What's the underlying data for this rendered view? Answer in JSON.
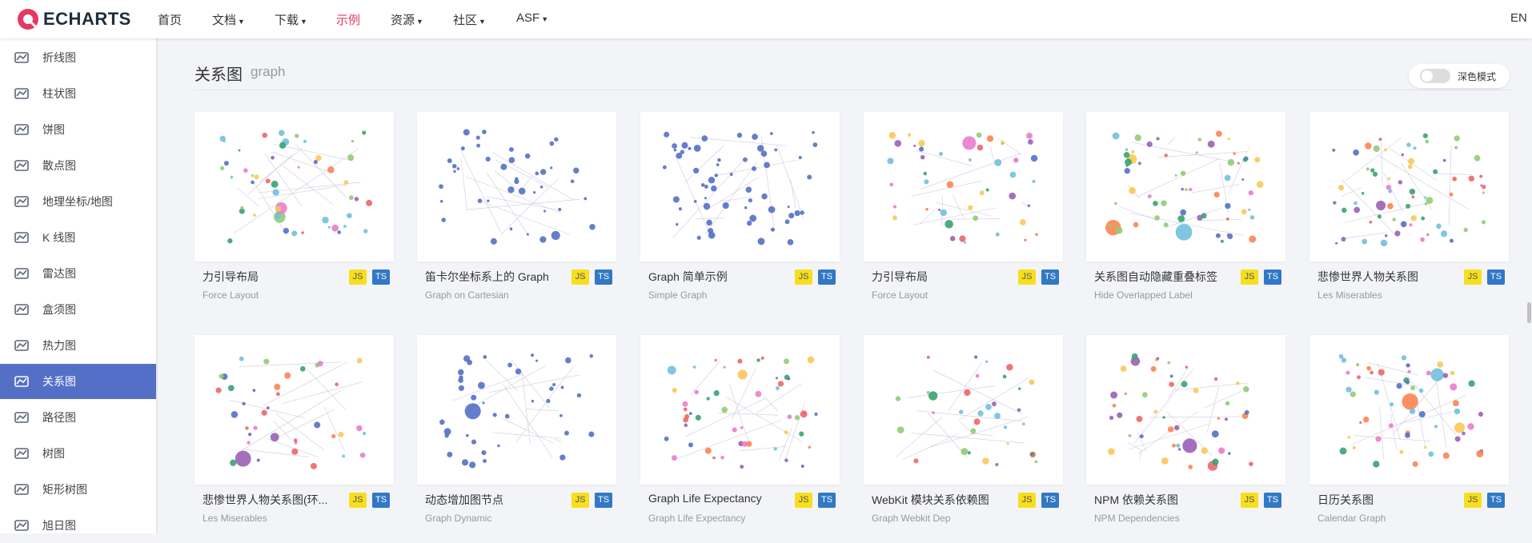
{
  "header": {
    "logo": "ECHARTS",
    "nav": [
      {
        "label": "首页",
        "caret": false
      },
      {
        "label": "文档",
        "caret": true
      },
      {
        "label": "下载",
        "caret": true
      },
      {
        "label": "示例",
        "caret": false,
        "active": true
      },
      {
        "label": "资源",
        "caret": true
      },
      {
        "label": "社区",
        "caret": true
      },
      {
        "label": "ASF",
        "caret": true
      }
    ],
    "lang": "EN"
  },
  "sidebar": {
    "items": [
      "折线图",
      "柱状图",
      "饼图",
      "散点图",
      "地理坐标/地图",
      "K 线图",
      "雷达图",
      "盒须图",
      "热力图",
      "关系图",
      "路径图",
      "树图",
      "矩形树图",
      "旭日图"
    ],
    "active": 9
  },
  "section": {
    "title": "关系图",
    "subtitle": "graph",
    "dark_mode": "深色模式"
  },
  "cards": [
    {
      "title": "力引导布局",
      "subtitle": "Force Layout",
      "badges": [
        "JS",
        "TS"
      ]
    },
    {
      "title": "笛卡尔坐标系上的 Graph",
      "subtitle": "Graph on Cartesian",
      "badges": [
        "JS",
        "TS"
      ]
    },
    {
      "title": "Graph 简单示例",
      "subtitle": "Simple Graph",
      "badges": [
        "JS",
        "TS"
      ]
    },
    {
      "title": "力引导布局",
      "subtitle": "Force Layout",
      "badges": [
        "JS",
        "TS"
      ]
    },
    {
      "title": "关系图自动隐藏重叠标签",
      "subtitle": "Hide Overlapped Label",
      "badges": [
        "JS",
        "TS"
      ]
    },
    {
      "title": "悲惨世界人物关系图",
      "subtitle": "Les Miserables",
      "badges": [
        "JS",
        "TS"
      ]
    },
    {
      "title": "悲惨世界人物关系图(环...",
      "subtitle": "Les Miserables",
      "badges": [
        "JS",
        "TS"
      ]
    },
    {
      "title": "动态增加图节点",
      "subtitle": "Graph Dynamic",
      "badges": [
        "JS",
        "TS"
      ]
    },
    {
      "title": "Graph Life Expectancy",
      "subtitle": "Graph Life Expectancy",
      "badges": [
        "JS",
        "TS"
      ]
    },
    {
      "title": "WebKit 模块关系依赖图",
      "subtitle": "Graph Webkit Dep",
      "badges": [
        "JS",
        "TS"
      ]
    },
    {
      "title": "NPM 依赖关系图",
      "subtitle": "NPM Dependencies",
      "badges": [
        "JS",
        "TS"
      ]
    },
    {
      "title": "日历关系图",
      "subtitle": "Calendar Graph",
      "badges": [
        "JS",
        "TS"
      ]
    }
  ]
}
